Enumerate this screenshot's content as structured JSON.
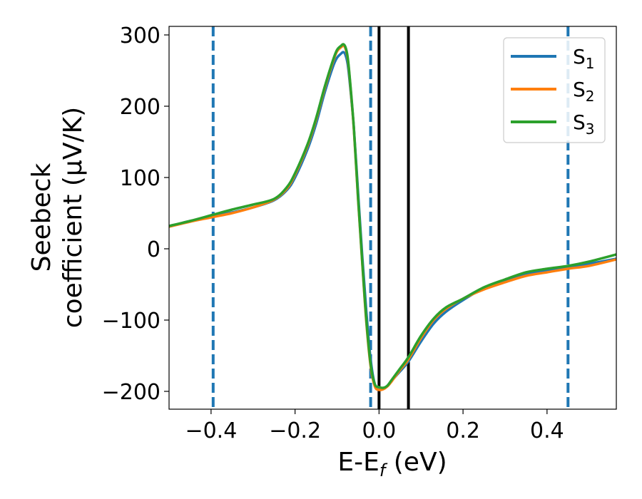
{
  "chart_data": {
    "type": "line",
    "xlabel": "E-E",
    "xlabel_sub": "f",
    "xlabel_unit": " (eV)",
    "ylabel_line1": "Seebeck",
    "ylabel_line2": "coefficient  (μV/K)",
    "xlim": [
      -0.5,
      0.565
    ],
    "ylim": [
      -225,
      312
    ],
    "x_ticks": [
      -0.4,
      -0.2,
      0.0,
      0.2,
      0.4
    ],
    "x_tick_labels": [
      "−0.4",
      "−0.2",
      "0.0",
      "0.2",
      "0.4"
    ],
    "y_ticks": [
      -200,
      -100,
      0,
      100,
      200,
      300
    ],
    "y_tick_labels": [
      "−200",
      "−100",
      "0",
      "100",
      "200",
      "300"
    ],
    "grid": false,
    "legend_position": "top-right",
    "series": [
      {
        "name": "S",
        "sub": "1",
        "color": "#1f77b4",
        "x": [
          -0.5,
          -0.45,
          -0.4,
          -0.35,
          -0.3,
          -0.25,
          -0.22,
          -0.2,
          -0.17,
          -0.15,
          -0.13,
          -0.11,
          -0.1,
          -0.09,
          -0.085,
          -0.08,
          -0.075,
          -0.07,
          -0.06,
          -0.05,
          -0.04,
          -0.03,
          -0.02,
          -0.01,
          0.0,
          0.01,
          0.02,
          0.03,
          0.05,
          0.07,
          0.1,
          0.13,
          0.16,
          0.2,
          0.25,
          0.3,
          0.35,
          0.4,
          0.45,
          0.5,
          0.565
        ],
        "y": [
          31,
          39,
          45,
          51,
          58,
          68,
          82,
          100,
          140,
          175,
          218,
          255,
          268,
          274,
          276,
          272,
          260,
          235,
          170,
          80,
          -10,
          -90,
          -155,
          -190,
          -195,
          -196,
          -192,
          -185,
          -172,
          -158,
          -130,
          -105,
          -88,
          -72,
          -55,
          -45,
          -36,
          -30,
          -26,
          -21,
          -14
        ]
      },
      {
        "name": "S",
        "sub": "2",
        "color": "#ff7f0e",
        "x": [
          -0.5,
          -0.45,
          -0.4,
          -0.35,
          -0.3,
          -0.25,
          -0.22,
          -0.2,
          -0.17,
          -0.15,
          -0.13,
          -0.11,
          -0.1,
          -0.09,
          -0.085,
          -0.08,
          -0.075,
          -0.07,
          -0.06,
          -0.05,
          -0.04,
          -0.03,
          -0.02,
          -0.01,
          0.0,
          0.01,
          0.02,
          0.03,
          0.05,
          0.07,
          0.1,
          0.13,
          0.16,
          0.2,
          0.25,
          0.3,
          0.35,
          0.4,
          0.45,
          0.5,
          0.565
        ],
        "y": [
          31,
          38,
          44,
          50,
          58,
          69,
          84,
          104,
          145,
          181,
          224,
          262,
          277,
          283,
          285,
          281,
          268,
          240,
          168,
          70,
          -20,
          -105,
          -165,
          -193,
          -198,
          -197,
          -193,
          -186,
          -170,
          -155,
          -125,
          -100,
          -84,
          -70,
          -57,
          -47,
          -38,
          -33,
          -28,
          -24,
          -15
        ]
      },
      {
        "name": "S",
        "sub": "3",
        "color": "#2ca02c",
        "x": [
          -0.5,
          -0.45,
          -0.4,
          -0.35,
          -0.3,
          -0.25,
          -0.22,
          -0.2,
          -0.17,
          -0.15,
          -0.13,
          -0.11,
          -0.1,
          -0.09,
          -0.085,
          -0.08,
          -0.075,
          -0.07,
          -0.06,
          -0.05,
          -0.04,
          -0.03,
          -0.02,
          -0.01,
          0.0,
          0.01,
          0.02,
          0.03,
          0.05,
          0.07,
          0.1,
          0.13,
          0.16,
          0.2,
          0.25,
          0.3,
          0.35,
          0.4,
          0.45,
          0.5,
          0.565
        ],
        "y": [
          32,
          39,
          47,
          55,
          62,
          70,
          86,
          106,
          147,
          183,
          226,
          264,
          279,
          285,
          287,
          283,
          270,
          242,
          170,
          72,
          -18,
          -102,
          -162,
          -190,
          -194,
          -195,
          -192,
          -184,
          -168,
          -152,
          -122,
          -98,
          -82,
          -70,
          -54,
          -43,
          -33,
          -28,
          -24,
          -18,
          -8
        ]
      }
    ],
    "vlines": [
      {
        "x": -0.395,
        "style": "dashed",
        "color": "#1f77b4"
      },
      {
        "x": -0.02,
        "style": "dashed",
        "color": "#1f77b4"
      },
      {
        "x": 0.0,
        "style": "solid",
        "color": "#000000"
      },
      {
        "x": 0.07,
        "style": "solid",
        "color": "#000000"
      },
      {
        "x": 0.45,
        "style": "dashed",
        "color": "#1f77b4"
      }
    ]
  }
}
